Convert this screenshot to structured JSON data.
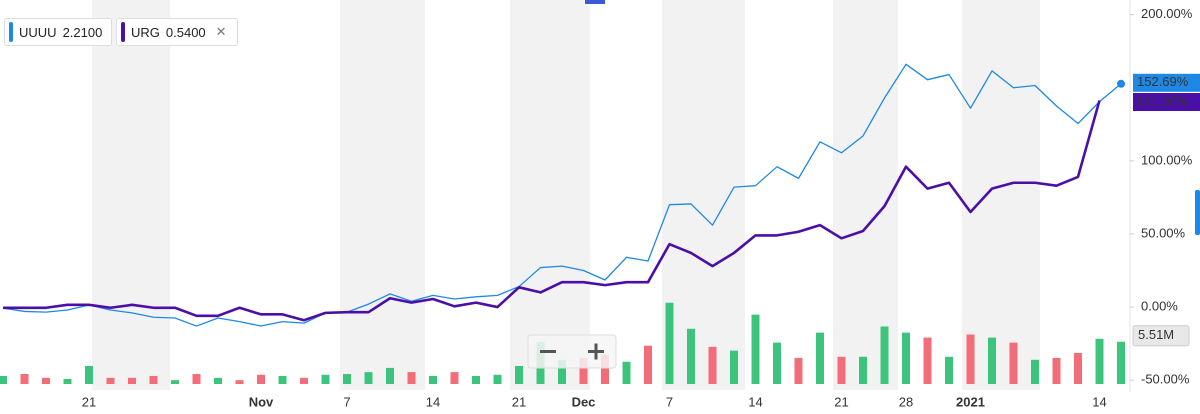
{
  "chart_data": {
    "type": "line",
    "categories": [
      null,
      null,
      null,
      null,
      "21",
      null,
      null,
      null,
      null,
      null,
      null,
      null,
      "Nov",
      null,
      null,
      null,
      "7",
      null,
      null,
      null,
      "14",
      null,
      null,
      null,
      "21",
      null,
      null,
      "Dec",
      null,
      null,
      null,
      "7",
      null,
      null,
      null,
      "14",
      null,
      null,
      null,
      "21",
      null,
      null,
      "28",
      null,
      null,
      "2021",
      null,
      null,
      null,
      null,
      null,
      "14",
      null
    ],
    "ylim": [
      -67,
      210
    ],
    "yticks": [
      {
        "value": 200,
        "label": "200.00%"
      },
      {
        "value": 100,
        "label": "100.00%"
      },
      {
        "value": 50,
        "label": "50.00%"
      },
      {
        "value": 0,
        "label": "0.00%"
      },
      {
        "value": -50,
        "label": "-50.00%"
      }
    ],
    "grid": false,
    "series": [
      {
        "name": "UUUU",
        "quote": {
          "value": 2.21,
          "label": "2.2100"
        },
        "color": "#1e88e5",
        "values": [
          -0.7,
          -3,
          -3.5,
          -2,
          1.4,
          -2,
          -4,
          -7,
          -7.5,
          -13,
          -7.5,
          -10,
          -13,
          -10,
          -11,
          -4,
          -3.5,
          2,
          9,
          4,
          8,
          5.5,
          7,
          8,
          14,
          27,
          28,
          25,
          18.5,
          34,
          31.5,
          70,
          70.5,
          56,
          82,
          83,
          96,
          88,
          113,
          105.5,
          117,
          143,
          166,
          155.5,
          159,
          136,
          161.5,
          150,
          151.5,
          137.5,
          125.5,
          140.5,
          152.69
        ],
        "value_labels": [
          null,
          null,
          null,
          null,
          null,
          null,
          null,
          null,
          null,
          null,
          null,
          null,
          null,
          null,
          null,
          null,
          null,
          null,
          null,
          null,
          null,
          null,
          null,
          null,
          null,
          null,
          null,
          null,
          null,
          null,
          null,
          null,
          null,
          null,
          null,
          null,
          null,
          null,
          null,
          null,
          null,
          null,
          null,
          null,
          null,
          null,
          null,
          null,
          null,
          null,
          null,
          null,
          "152.69%"
        ]
      },
      {
        "name": "URG",
        "quote": {
          "value": 0.54,
          "label": "0.5400"
        },
        "color": "#4b0fa8",
        "values": [
          -0.5,
          -0.5,
          -0.5,
          1.5,
          1.5,
          -0.5,
          1.5,
          -0.5,
          -0.5,
          -6,
          -6,
          -0.5,
          -5,
          -5,
          -9,
          -4,
          -3.5,
          -3.5,
          6,
          3,
          5.5,
          0.5,
          3,
          0,
          13.5,
          10,
          17,
          17,
          15,
          17,
          17,
          43,
          37,
          28,
          37,
          49,
          49,
          51.5,
          56,
          47,
          52,
          69,
          96,
          81,
          85,
          65,
          81,
          85,
          85,
          83,
          89,
          141.3,
          null
        ],
        "value_labels": [
          null,
          null,
          null,
          null,
          null,
          null,
          null,
          null,
          null,
          null,
          null,
          null,
          null,
          null,
          null,
          null,
          null,
          null,
          null,
          null,
          null,
          null,
          null,
          null,
          null,
          null,
          null,
          null,
          null,
          null,
          null,
          null,
          null,
          null,
          null,
          null,
          null,
          null,
          null,
          null,
          null,
          null,
          null,
          null,
          null,
          null,
          null,
          null,
          null,
          null,
          null,
          "141.30%",
          null
        ]
      }
    ],
    "volume": {
      "ylim": [
        0,
        12
      ],
      "values": [
        1.05,
        1.3,
        0.8,
        0.65,
        2.35,
        0.8,
        0.8,
        1.05,
        0.5,
        1.3,
        0.8,
        0.5,
        1.2,
        1.05,
        0.8,
        1.2,
        1.3,
        1.55,
        2.1,
        1.55,
        1.05,
        1.55,
        1.05,
        1.2,
        2.35,
        5.5,
        3.15,
        3.4,
        3.8,
        2.9,
        5.0,
        10.6,
        7.2,
        4.85,
        4.35,
        9.05,
        5.4,
        3.4,
        6.7,
        3.55,
        3.55,
        7.5,
        6.7,
        6.05,
        3.55,
        6.45,
        6.05,
        5.4,
        3.15,
        3.4,
        4.05,
        5.9,
        5.51
      ],
      "colors": [
        "#3cc47c",
        "#f26d78",
        "#f26d78",
        "#3cc47c",
        "#3cc47c",
        "#f26d78",
        "#f26d78",
        "#f26d78",
        "#3cc47c",
        "#f26d78",
        "#3cc47c",
        "#f26d78",
        "#f26d78",
        "#3cc47c",
        "#f26d78",
        "#3cc47c",
        "#3cc47c",
        "#3cc47c",
        "#3cc47c",
        "#f26d78",
        "#3cc47c",
        "#f26d78",
        "#3cc47c",
        "#3cc47c",
        "#3cc47c",
        "#3cc47c",
        "#3cc47c",
        "#f26d78",
        "#f26d78",
        "#3cc47c",
        "#f26d78",
        "#3cc47c",
        "#3cc47c",
        "#f26d78",
        "#3cc47c",
        "#3cc47c",
        "#3cc47c",
        "#f26d78",
        "#3cc47c",
        "#f26d78",
        "#3cc47c",
        "#3cc47c",
        "#3cc47c",
        "#f26d78",
        "#3cc47c",
        "#f26d78",
        "#3cc47c",
        "#f26d78",
        "#3cc47c",
        "#f26d78",
        "#f26d78",
        "#3cc47c",
        "#3cc47c"
      ],
      "value_labels": [
        null,
        null,
        null,
        null,
        null,
        null,
        null,
        null,
        null,
        null,
        null,
        null,
        null,
        null,
        null,
        null,
        null,
        null,
        null,
        null,
        null,
        null,
        null,
        null,
        null,
        null,
        null,
        null,
        null,
        null,
        null,
        null,
        null,
        null,
        null,
        null,
        null,
        null,
        null,
        null,
        null,
        null,
        null,
        null,
        null,
        null,
        null,
        null,
        null,
        null,
        null,
        null,
        "5.51M"
      ]
    }
  }
}
